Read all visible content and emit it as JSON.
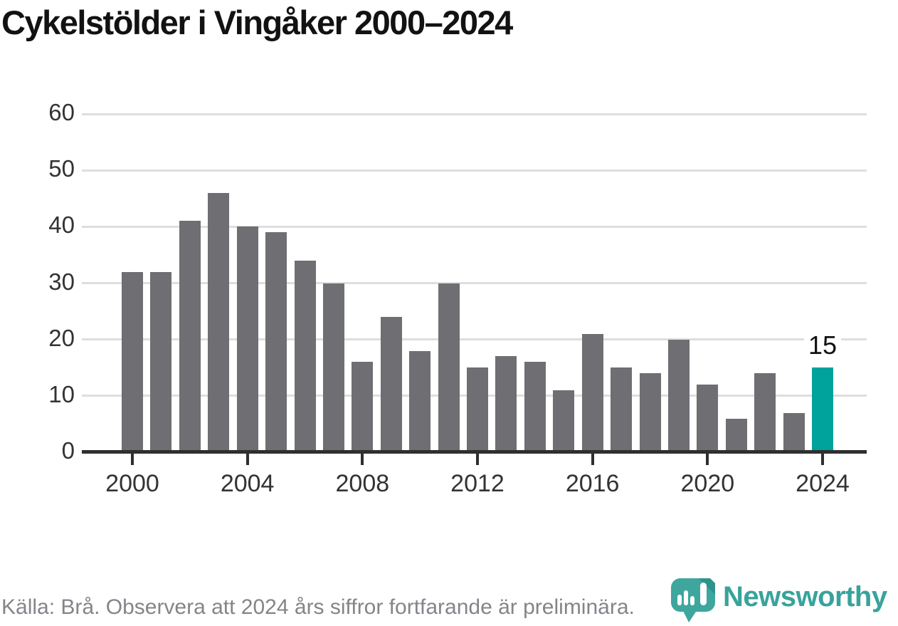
{
  "title": "Cykelstölder i Vingåker 2000–2024",
  "footer": {
    "source_note": "Källa: Brå. Observera att 2024 års siffror fortfarande är preliminära."
  },
  "logo": {
    "name": "Newsworthy"
  },
  "colors": {
    "bar": "#6e6e73",
    "highlight_bar": "#00a39c",
    "gridline": "#dedede",
    "axis": "#2f2f2f",
    "tick_label": "#333333",
    "title": "#121212",
    "footer_text": "#84848a",
    "logo_teal": "#38a39b"
  },
  "chart_data": {
    "type": "bar",
    "title": "Cykelstölder i Vingåker 2000–2024",
    "x": [
      2000,
      2001,
      2002,
      2003,
      2004,
      2005,
      2006,
      2007,
      2008,
      2009,
      2010,
      2011,
      2012,
      2013,
      2014,
      2015,
      2016,
      2017,
      2018,
      2019,
      2020,
      2021,
      2022,
      2023,
      2024
    ],
    "values": [
      32,
      32,
      41,
      46,
      40,
      39,
      34,
      30,
      16,
      24,
      18,
      30,
      15,
      17,
      16,
      11,
      21,
      15,
      14,
      20,
      12,
      6,
      14,
      7,
      15
    ],
    "highlight_year": 2024,
    "highlight_value_label": "15",
    "xlabel": "",
    "ylabel": "",
    "ylim": [
      0,
      60
    ],
    "yticks": [
      0,
      10,
      20,
      30,
      40,
      50,
      60
    ],
    "xticks": [
      2000,
      2004,
      2008,
      2012,
      2016,
      2020,
      2024
    ],
    "grid": "horizontal",
    "legend": "none"
  }
}
